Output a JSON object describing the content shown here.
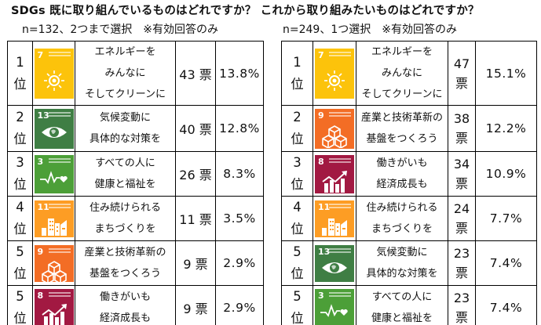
{
  "header": {
    "title": "SDGs 既に取り組んでいるものはどれですか？ これから取り組みたいものはどれですか？"
  },
  "left": {
    "subtitle": "n=132、2つまで選択　※有効回答のみ",
    "rows": [
      {
        "rank": "1",
        "rank_suffix": "位",
        "goal": 7,
        "color": "#FCC30B",
        "icon": "sun-icon",
        "lines": [
          "エネルギーを",
          "みんなに",
          "そしてクリーンに"
        ],
        "votes": "43 票",
        "votes_num": "43",
        "vote_unit": "票",
        "pct": "13.8%"
      },
      {
        "rank": "2",
        "rank_suffix": "位",
        "goal": 13,
        "color": "#3F7E44",
        "icon": "eye-globe-icon",
        "lines": [
          "気候変動に",
          "具体的な対策を"
        ],
        "votes": "40 票",
        "votes_num": "40",
        "vote_unit": "票",
        "pct": "12.8%"
      },
      {
        "rank": "3",
        "rank_suffix": "位",
        "goal": 3,
        "color": "#4C9F38",
        "icon": "heartbeat-icon",
        "lines": [
          "すべての人に",
          "健康と福祉を"
        ],
        "votes": "26 票",
        "votes_num": "26",
        "vote_unit": "票",
        "pct": "8.3%"
      },
      {
        "rank": "4",
        "rank_suffix": "位",
        "goal": 11,
        "color": "#FD9D24",
        "icon": "city-icon",
        "lines": [
          "住み続けられる",
          "まちづくりを"
        ],
        "votes": "11 票",
        "votes_num": "11",
        "vote_unit": "票",
        "pct": "3.5%"
      },
      {
        "rank": "5",
        "rank_suffix": "位",
        "goal": 9,
        "color": "#F36D25",
        "icon": "cubes-icon",
        "lines": [
          "産業と技術革新の",
          "基盤をつくろう"
        ],
        "votes": "9 票",
        "votes_num": "9",
        "vote_unit": "票",
        "pct": "2.9%"
      },
      {
        "rank": "5",
        "rank_suffix": "位",
        "goal": 8,
        "color": "#A21942",
        "icon": "growth-chart-icon",
        "lines": [
          "働きがいも",
          "経済成長も"
        ],
        "votes": "9 票",
        "votes_num": "9",
        "vote_unit": "票",
        "pct": "2.9%"
      }
    ]
  },
  "right": {
    "subtitle": "n=249、1つ選択　※有効回答のみ",
    "rows": [
      {
        "rank": "1",
        "rank_suffix": "位",
        "goal": 7,
        "color": "#FCC30B",
        "icon": "sun-icon",
        "lines": [
          "エネルギーを",
          "みんなに",
          "そしてクリーンに"
        ],
        "votes_num": "47",
        "vote_unit": "票",
        "pct": "15.1%"
      },
      {
        "rank": "2",
        "rank_suffix": "位",
        "goal": 9,
        "color": "#F36D25",
        "icon": "cubes-icon",
        "lines": [
          "産業と技術革新の",
          "基盤をつくろう"
        ],
        "votes_num": "38",
        "vote_unit": "票",
        "pct": "12.2%"
      },
      {
        "rank": "3",
        "rank_suffix": "位",
        "goal": 8,
        "color": "#A21942",
        "icon": "growth-chart-icon",
        "lines": [
          "働きがいも",
          "経済成長も"
        ],
        "votes_num": "34",
        "vote_unit": "票",
        "pct": "10.9%"
      },
      {
        "rank": "4",
        "rank_suffix": "位",
        "goal": 11,
        "color": "#FD9D24",
        "icon": "city-icon",
        "lines": [
          "住み続けられる",
          "まちづくりを"
        ],
        "votes_num": "24",
        "vote_unit": "票",
        "pct": "7.7%"
      },
      {
        "rank": "5",
        "rank_suffix": "位",
        "goal": 13,
        "color": "#3F7E44",
        "icon": "eye-globe-icon",
        "lines": [
          "気候変動に",
          "具体的な対策を"
        ],
        "votes_num": "23",
        "vote_unit": "票",
        "pct": "7.4%"
      },
      {
        "rank": "5",
        "rank_suffix": "位",
        "goal": 3,
        "color": "#4C9F38",
        "icon": "heartbeat-icon",
        "lines": [
          "すべての人に",
          "健康と福祉を"
        ],
        "votes_num": "23",
        "vote_unit": "票",
        "pct": "7.4%"
      }
    ]
  }
}
